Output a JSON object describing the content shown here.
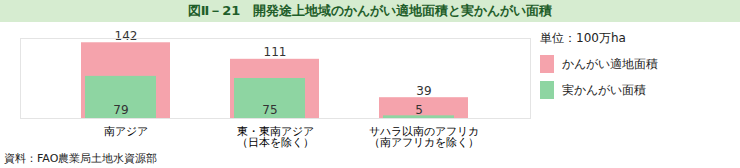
{
  "chart_data": {
    "type": "bar",
    "title": "図Ⅱ－21　開発途上地域のかんがい適地面積と実かんがい面積",
    "annotations": [
      "単位：100万ha"
    ],
    "caption": "資料：FAO農業局土地水資源部",
    "categories": [
      "南アジア",
      "東・東南アジア\n（日本を除く）",
      "サハラ以南のアフリカ\n（南アフリカを除く）"
    ],
    "series": [
      {
        "name": "かんがい適地面積",
        "color": "#f5a3ac",
        "values": [
          142,
          111,
          39
        ]
      },
      {
        "name": "実かんがい面積",
        "color": "#8ed5a2",
        "values": [
          79,
          75,
          5
        ]
      }
    ],
    "ylim": [
      0,
      150
    ],
    "tick_labels": "x",
    "grid": false,
    "stacked": false,
    "data_labels": true,
    "legend": "right"
  }
}
